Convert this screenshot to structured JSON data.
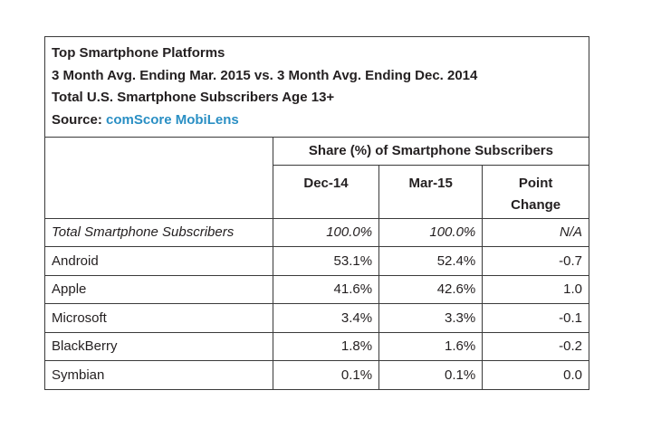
{
  "chart_data": {
    "type": "table",
    "title_lines": [
      "Top Smartphone Platforms",
      "3 Month Avg. Ending Mar. 2015 vs. 3 Month Avg. Ending Dec. 2014",
      "Total U.S. Smartphone Subscribers Age 13+"
    ],
    "source_label": "Source:",
    "source_name": "comScore MobiLens",
    "group_header": "Share (%) of Smartphone Subscribers",
    "columns": [
      "Dec-14",
      "Mar-15",
      "Point Change"
    ],
    "column_header_lines": [
      [
        "Dec-14"
      ],
      [
        "Mar-15"
      ],
      [
        "Point",
        "Change"
      ]
    ],
    "rows": [
      {
        "label": "Total Smartphone Subscribers",
        "dec14": "100.0%",
        "mar15": "100.0%",
        "change": "N/A",
        "italic": true
      },
      {
        "label": "Android",
        "dec14": "53.1%",
        "mar15": "52.4%",
        "change": "-0.7"
      },
      {
        "label": "Apple",
        "dec14": "41.6%",
        "mar15": "42.6%",
        "change": "1.0"
      },
      {
        "label": "Microsoft",
        "dec14": "3.4%",
        "mar15": "3.3%",
        "change": "-0.1"
      },
      {
        "label": "BlackBerry",
        "dec14": "1.8%",
        "mar15": "1.6%",
        "change": "-0.2"
      },
      {
        "label": "Symbian",
        "dec14": "0.1%",
        "mar15": "0.1%",
        "change": "0.0"
      }
    ]
  },
  "colors": {
    "text": "#231f20",
    "border": "#3a3a3a",
    "source_link": "#2a8fc4"
  }
}
